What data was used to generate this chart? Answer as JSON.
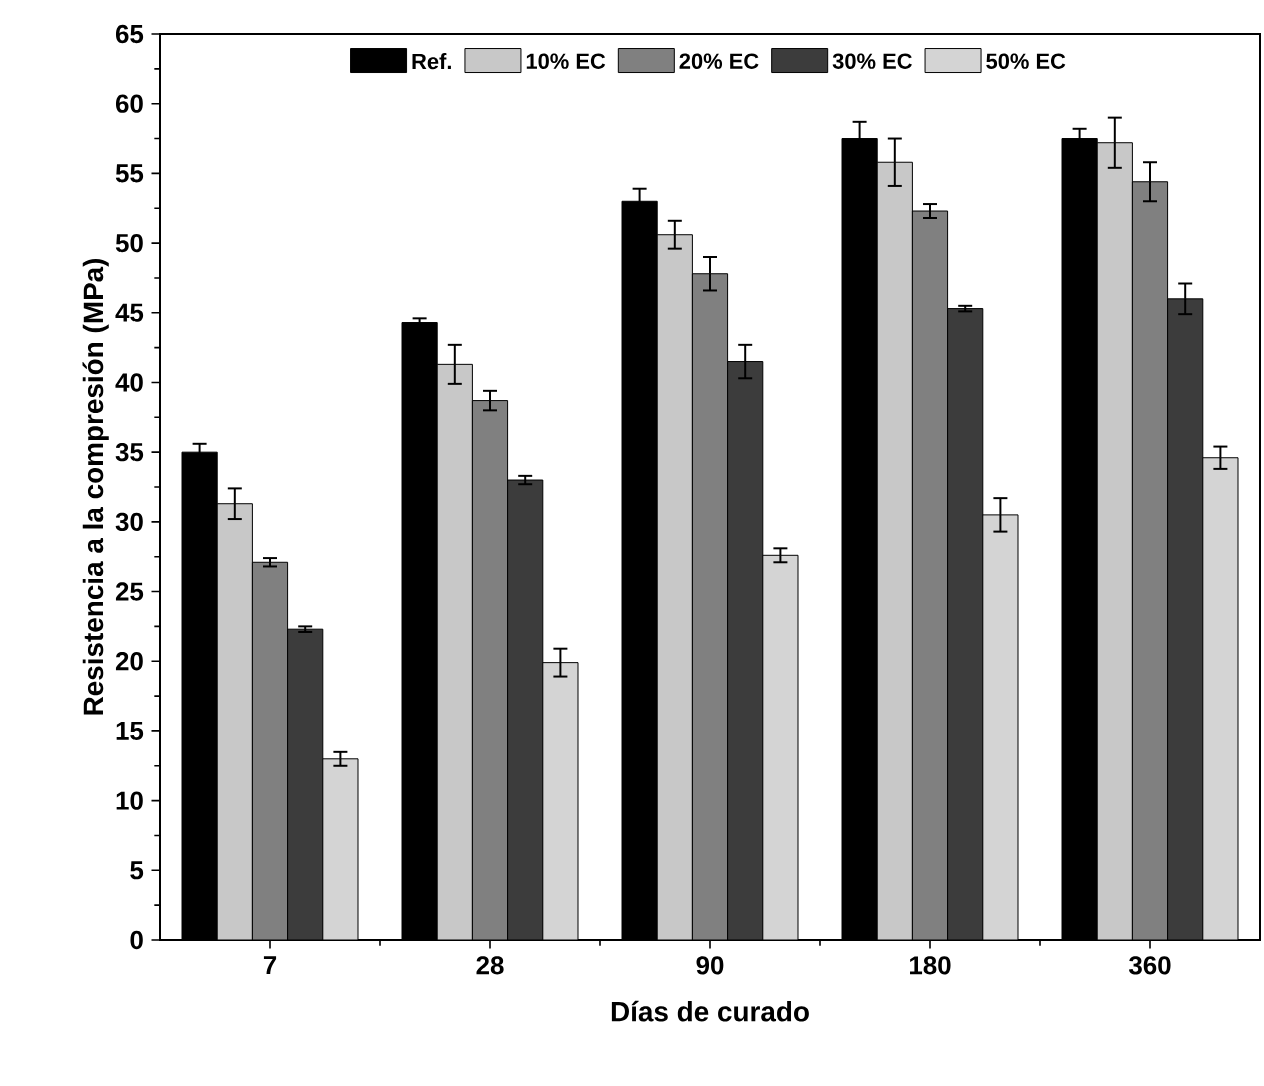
{
  "chart_data": {
    "type": "bar",
    "xlabel": "Días de curado",
    "ylabel": "Resistencia a la compresión (MPa)",
    "categories": [
      "7",
      "28",
      "90",
      "180",
      "360"
    ],
    "series": [
      {
        "name": "Ref.",
        "color": "#000000",
        "values": [
          35,
          44.3,
          53,
          57.5,
          57.5
        ],
        "errors": [
          0.6,
          0.3,
          0.9,
          1.2,
          0.7
        ]
      },
      {
        "name": "10% EC",
        "color": "#c8c8c8",
        "values": [
          31.3,
          41.3,
          50.6,
          55.8,
          57.2
        ],
        "errors": [
          1.1,
          1.4,
          1.0,
          1.7,
          1.8
        ]
      },
      {
        "name": "20% EC",
        "color": "#808080",
        "values": [
          27.1,
          38.7,
          47.8,
          52.3,
          54.4
        ],
        "errors": [
          0.3,
          0.7,
          1.2,
          0.5,
          1.4
        ]
      },
      {
        "name": "30% EC",
        "color": "#3c3c3c",
        "values": [
          22.3,
          33,
          41.5,
          45.3,
          46
        ],
        "errors": [
          0.2,
          0.3,
          1.2,
          0.2,
          1.1
        ]
      },
      {
        "name": "50% EC",
        "color": "#d4d4d4",
        "values": [
          13,
          19.9,
          27.6,
          30.5,
          34.6
        ],
        "errors": [
          0.5,
          1.0,
          0.5,
          1.2,
          0.8
        ]
      }
    ],
    "ylim": [
      0,
      65
    ],
    "yticks": [
      0,
      5,
      10,
      15,
      20,
      25,
      30,
      35,
      40,
      45,
      50,
      55,
      60,
      65
    ],
    "legend": "top",
    "grid": false
  }
}
